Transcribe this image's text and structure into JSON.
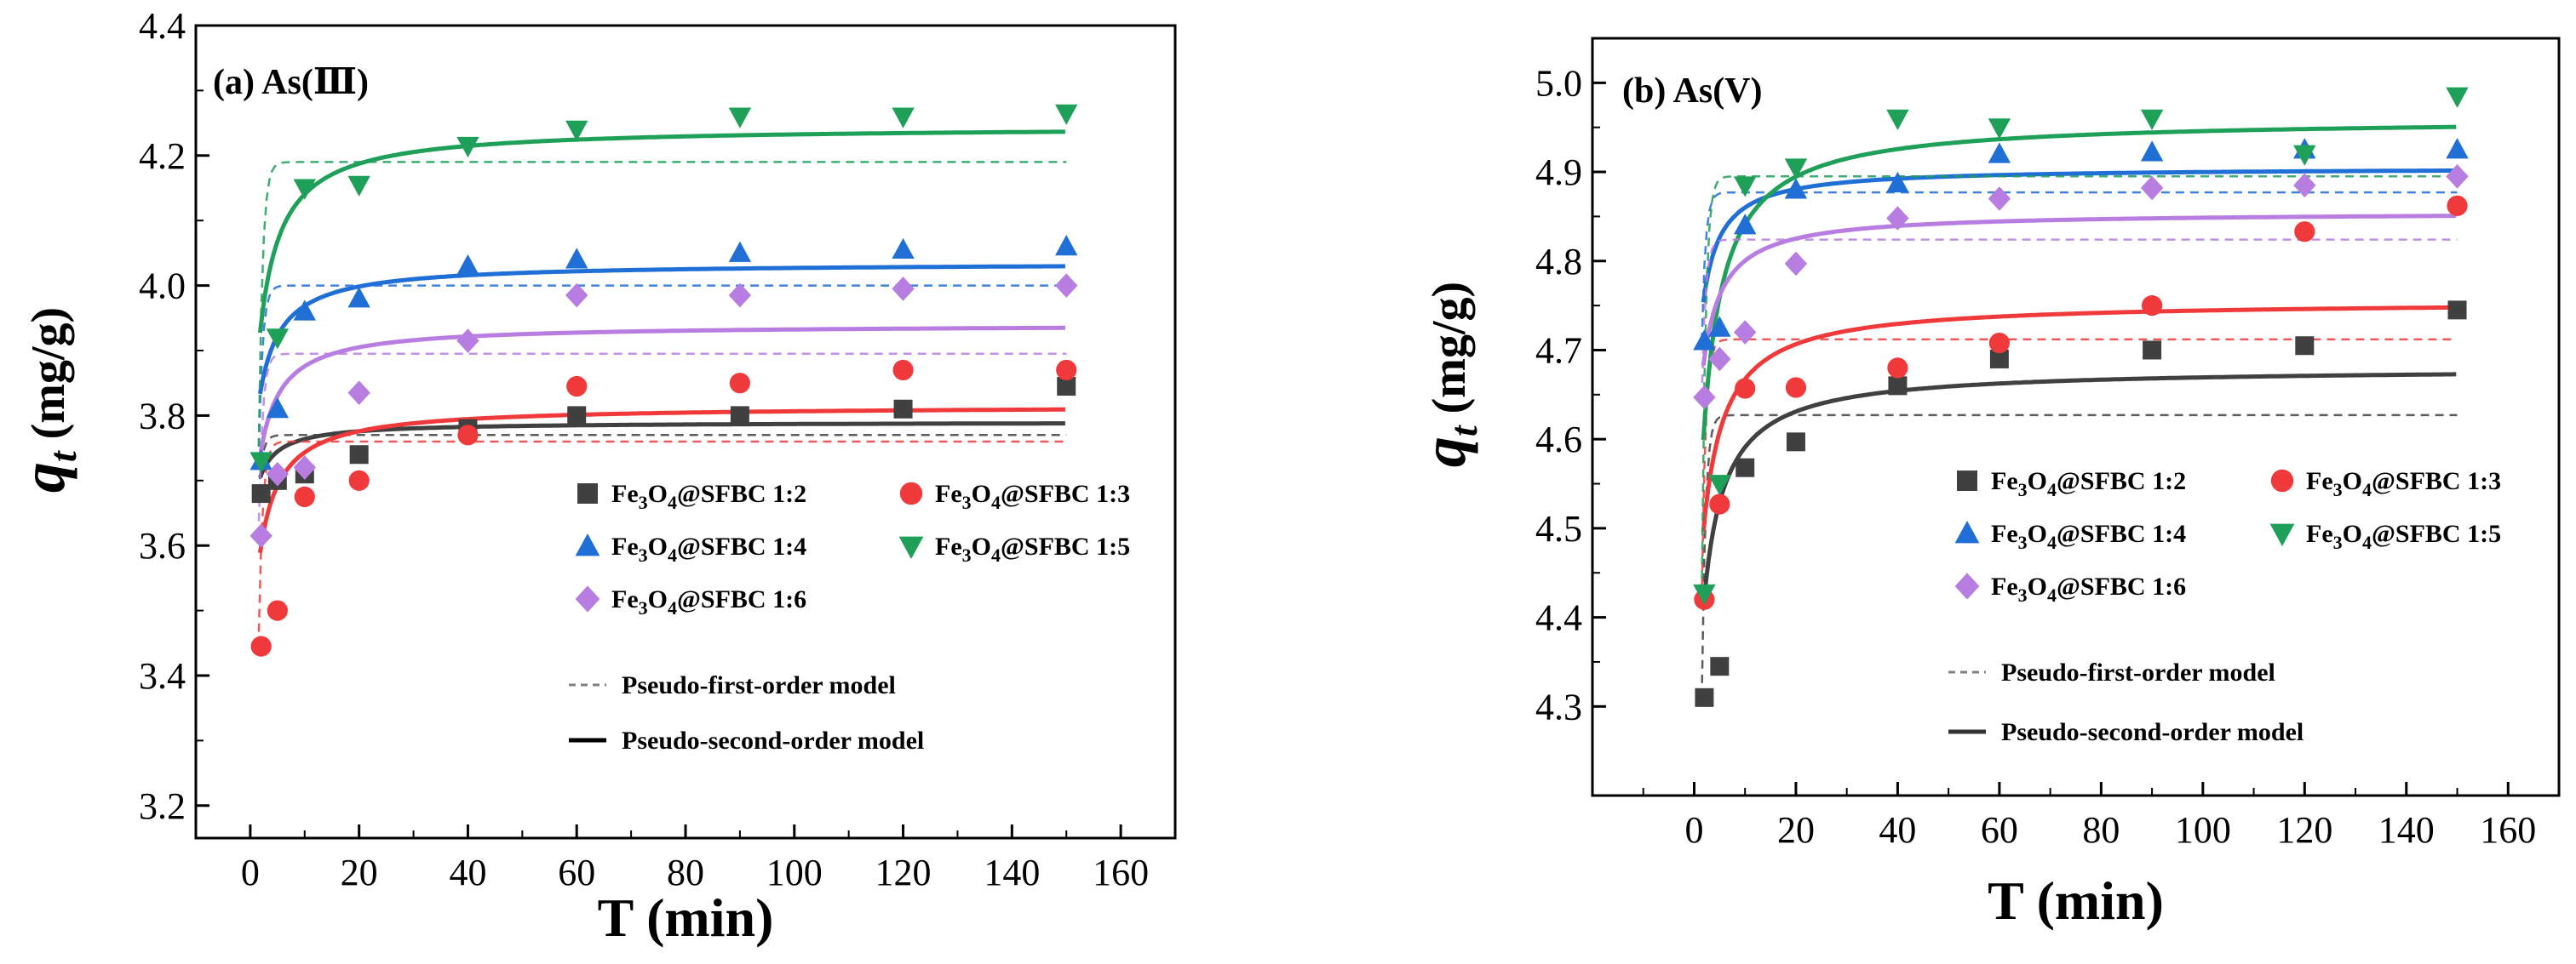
{
  "chart_data": [
    {
      "type": "scatter",
      "title": "(a) As(Ⅲ)",
      "xlabel": "T (min)",
      "ylabel": "q_t (mg/g)",
      "ylabel_main": "q",
      "ylabel_sub": "t",
      "ylabel_units": "(mg/g)",
      "xlim": [
        -10,
        170
      ],
      "ylim": [
        3.15,
        4.4
      ],
      "xticks": [
        0,
        20,
        40,
        60,
        80,
        100,
        120,
        140,
        160
      ],
      "yticks": [
        3.2,
        3.4,
        3.6,
        3.8,
        4.0,
        4.2,
        4.4
      ],
      "x": [
        2,
        5,
        10,
        20,
        40,
        60,
        90,
        120,
        150
      ],
      "series": [
        {
          "name": "Fe3O4@SFBC 1:2",
          "color": "#404040",
          "marker": "square",
          "values": [
            3.68,
            3.7,
            3.71,
            3.74,
            3.78,
            3.8,
            3.8,
            3.81,
            3.845
          ],
          "pfo": 3.77,
          "pso": 3.79
        },
        {
          "name": "Fe3O4@SFBC 1:3",
          "color": "#f0393a",
          "marker": "circle",
          "values": [
            3.445,
            3.5,
            3.675,
            3.7,
            3.77,
            3.845,
            3.85,
            3.87,
            3.87
          ],
          "pfo": 3.76,
          "pso": 3.815
        },
        {
          "name": "Fe3O4@SFBC 1:4",
          "color": "#1f6fd6",
          "marker": "triangle-up",
          "values": [
            3.73,
            3.81,
            3.96,
            3.98,
            4.03,
            4.04,
            4.05,
            4.055,
            4.06
          ],
          "pfo": 4.0,
          "pso": 4.035
        },
        {
          "name": "Fe3O4@SFBC 1:5",
          "color": "#1fa058",
          "marker": "triangle-down",
          "values": [
            3.73,
            3.92,
            4.15,
            4.155,
            4.215,
            4.24,
            4.26,
            4.26,
            4.265
          ],
          "pfo": 4.19,
          "pso": 4.245
        },
        {
          "name": "Fe3O4@SFBC 1:6",
          "color": "#b77de0",
          "marker": "diamond",
          "values": [
            3.615,
            3.71,
            3.72,
            3.835,
            3.915,
            3.985,
            3.985,
            3.995,
            4.0
          ],
          "pfo": 3.895,
          "pso": 3.94
        }
      ],
      "model_labels": [
        "Pseudo-first-order model",
        "Pseudo-second-order model"
      ]
    },
    {
      "type": "scatter",
      "title": "(b) As(V)",
      "xlabel": "T (min)",
      "ylabel": "q_t (mg/g)",
      "ylabel_main": "q",
      "ylabel_sub": "t",
      "ylabel_units": "(mg/g)",
      "xlim": [
        -20,
        170
      ],
      "ylim": [
        4.2,
        5.05
      ],
      "xticks": [
        0,
        20,
        40,
        60,
        80,
        100,
        120,
        140,
        160
      ],
      "yticks": [
        4.3,
        4.4,
        4.5,
        4.6,
        4.7,
        4.8,
        4.9,
        5.0
      ],
      "x": [
        2,
        5,
        10,
        20,
        40,
        60,
        90,
        120,
        150
      ],
      "series": [
        {
          "name": "Fe3O4@SFBC 1:2",
          "color": "#404040",
          "marker": "square",
          "values": [
            4.31,
            4.345,
            4.568,
            4.597,
            4.66,
            4.69,
            4.7,
            4.705,
            4.745
          ],
          "pfo": 4.627,
          "pso": 4.68
        },
        {
          "name": "Fe3O4@SFBC 1:3",
          "color": "#f0393a",
          "marker": "circle",
          "values": [
            4.42,
            4.527,
            4.657,
            4.658,
            4.68,
            4.708,
            4.75,
            4.833,
            4.862
          ],
          "pfo": 4.712,
          "pso": 4.755
        },
        {
          "name": "Fe3O4@SFBC 1:4",
          "color": "#1f6fd6",
          "marker": "triangle-up",
          "values": [
            4.71,
            4.725,
            4.84,
            4.88,
            4.887,
            4.92,
            4.922,
            4.925,
            4.925
          ],
          "pfo": 4.877,
          "pso": 4.905
        },
        {
          "name": "Fe3O4@SFBC 1:5",
          "color": "#1fa058",
          "marker": "triangle-down",
          "values": [
            4.427,
            4.55,
            4.885,
            4.905,
            4.96,
            4.95,
            4.96,
            4.92,
            4.985
          ],
          "pfo": 4.895,
          "pso": 4.96
        },
        {
          "name": "Fe3O4@SFBC 1:6",
          "color": "#b77de0",
          "marker": "diamond",
          "values": [
            4.647,
            4.69,
            4.72,
            4.797,
            4.848,
            4.87,
            4.882,
            4.885,
            4.895
          ],
          "pfo": 4.824,
          "pso": 4.855
        }
      ],
      "model_labels": [
        "Pseudo-first-order model",
        "Pseudo-second-order model"
      ]
    }
  ]
}
